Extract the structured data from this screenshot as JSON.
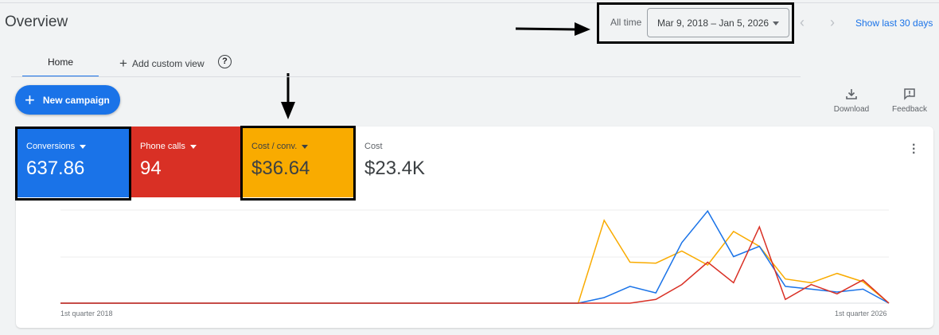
{
  "header": {
    "title": "Overview"
  },
  "tabs": [
    {
      "label": "Home",
      "active": true
    },
    {
      "label": "Add custom view"
    }
  ],
  "new_campaign_label": "New campaign",
  "date_range": {
    "preset": "All time",
    "value": "Mar 9, 2018 – Jan 5, 2026",
    "show_last_30": "Show last 30 days"
  },
  "toolbar": {
    "download": "Download",
    "feedback": "Feedback"
  },
  "metrics": [
    {
      "label": "Conversions",
      "value": "637.86",
      "color": "#1a73e8",
      "text_color": "#ffffff",
      "dropdown": true
    },
    {
      "label": "Phone calls",
      "value": "94",
      "color": "#d93025",
      "text_color": "#ffffff",
      "dropdown": true
    },
    {
      "label": "Cost / conv.",
      "value": "$36.64",
      "color": "#f9ab00",
      "text_color": "#3c4043",
      "dropdown": true
    },
    {
      "label": "Cost",
      "value": "$23.4K",
      "color": "#ffffff",
      "text_color": "#3c4043",
      "dropdown": false
    }
  ],
  "chart_data": {
    "type": "line",
    "x_start": "1st quarter 2018",
    "x_end": "1st quarter 2026",
    "tick_labels": [
      "1st quarter 2018",
      "1st quarter 2026"
    ],
    "grid": true,
    "series": [
      {
        "color": "#f9ab00",
        "values": [
          0,
          0,
          0,
          0,
          0,
          0,
          0,
          0,
          0,
          0,
          0,
          0,
          0,
          0,
          0,
          0,
          0,
          0,
          0,
          0,
          0,
          89,
          44,
          43,
          56,
          41,
          77,
          61,
          26,
          22,
          32,
          23,
          0
        ]
      },
      {
        "color": "#1a73e8",
        "values": [
          0,
          0,
          0,
          0,
          0,
          0,
          0,
          0,
          0,
          0,
          0,
          0,
          0,
          0,
          0,
          0,
          0,
          0,
          0,
          0,
          0,
          6,
          18,
          11,
          65,
          99,
          50,
          61,
          18,
          15,
          12,
          15,
          0
        ]
      },
      {
        "color": "#d93025",
        "values": [
          0,
          0,
          0,
          0,
          0,
          0,
          0,
          0,
          0,
          0,
          0,
          0,
          0,
          0,
          0,
          0,
          0,
          0,
          0,
          0,
          0,
          0,
          0,
          4,
          20,
          44,
          22,
          82,
          4,
          20,
          10,
          25,
          0
        ]
      }
    ]
  }
}
